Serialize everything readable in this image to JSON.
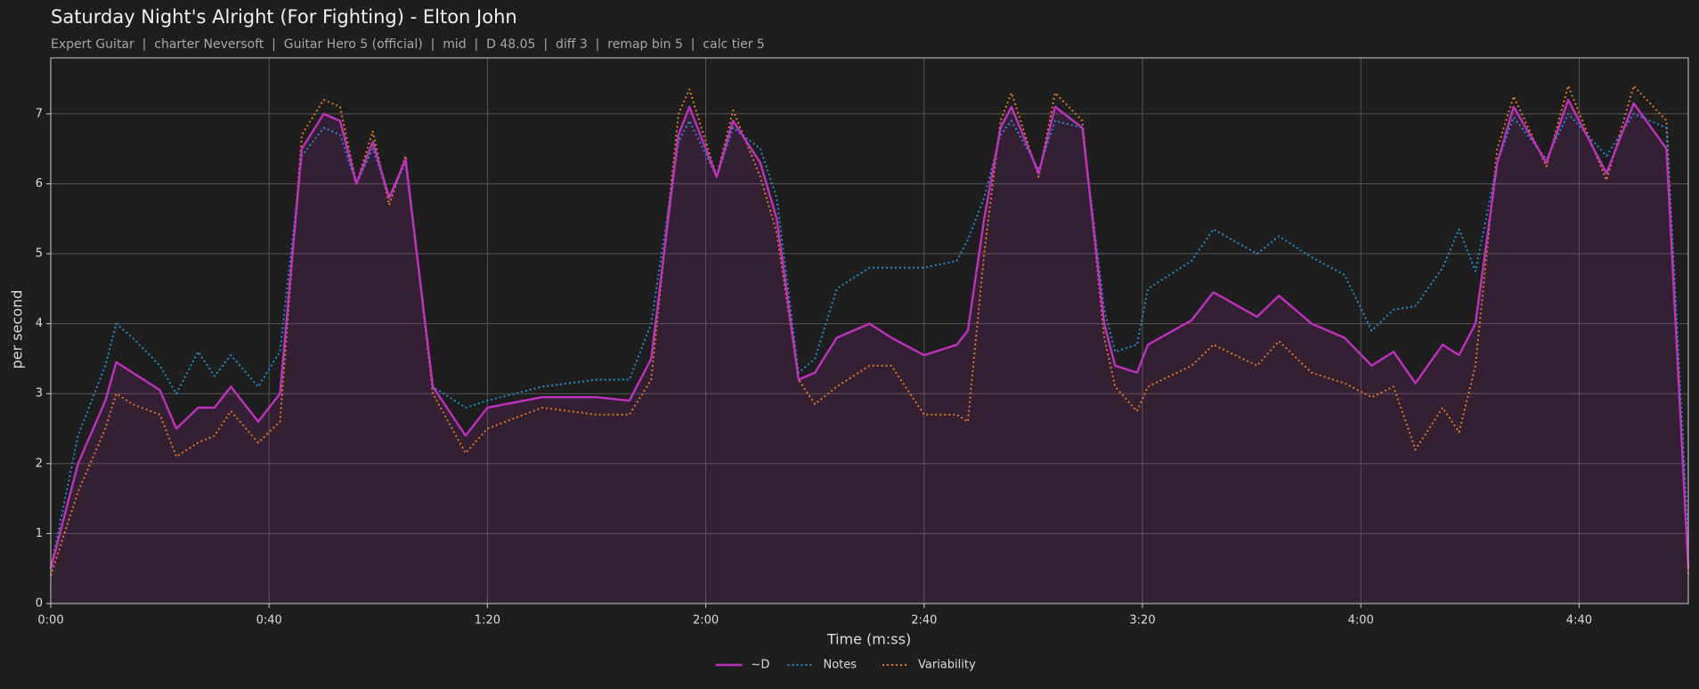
{
  "chart_data": {
    "type": "line",
    "title": "Saturday Night's Alright (For Fighting) - Elton John",
    "subtitle": "Expert Guitar  |  charter Neversoft  |  Guitar Hero 5 (official)  |  mid  |  D 48.05  |  diff 3  |  remap bin 5  |  calc tier 5",
    "x_label": "Time (m:ss)",
    "y_label": "per second",
    "x": [
      0,
      5,
      10,
      12,
      15,
      20,
      23,
      27,
      30,
      33,
      38,
      42,
      46,
      50,
      53,
      56,
      59,
      62,
      65,
      70,
      76,
      80,
      90,
      100,
      106,
      110,
      115,
      117,
      122,
      125,
      130,
      133,
      137,
      140,
      144,
      150,
      154,
      160,
      166,
      168,
      171,
      174,
      176,
      181,
      184,
      189,
      193,
      195,
      199,
      201,
      209,
      213,
      221,
      225,
      231,
      237,
      242,
      246,
      250,
      255,
      258,
      261,
      265,
      268,
      274,
      278,
      285,
      290,
      296,
      300
    ],
    "series": [
      {
        "name": "~D",
        "color": "#c22fc2",
        "style": "solid",
        "fill": true,
        "values": [
          0.5,
          2.0,
          2.9,
          3.45,
          3.3,
          3.05,
          2.5,
          2.8,
          2.8,
          3.1,
          2.6,
          3.0,
          6.5,
          7.0,
          6.9,
          6.0,
          6.6,
          5.8,
          6.35,
          3.1,
          2.4,
          2.8,
          2.95,
          2.95,
          2.9,
          3.5,
          6.7,
          7.1,
          6.1,
          6.9,
          6.3,
          5.5,
          3.2,
          3.3,
          3.8,
          4.0,
          3.8,
          3.55,
          3.7,
          3.9,
          5.5,
          6.8,
          7.1,
          6.15,
          7.1,
          6.8,
          4.0,
          3.4,
          3.3,
          3.7,
          4.05,
          4.45,
          4.1,
          4.4,
          4.0,
          3.8,
          3.4,
          3.6,
          3.15,
          3.7,
          3.55,
          4.0,
          6.3,
          7.1,
          6.3,
          7.2,
          6.15,
          7.15,
          6.5,
          0.5
        ]
      },
      {
        "name": "Notes",
        "color": "#1f8fcf",
        "style": "dotted",
        "values": [
          0.5,
          2.4,
          3.4,
          4.0,
          3.8,
          3.4,
          3.0,
          3.6,
          3.25,
          3.55,
          3.1,
          3.6,
          6.4,
          6.8,
          6.7,
          6.0,
          6.5,
          5.8,
          6.3,
          3.1,
          2.8,
          2.9,
          3.1,
          3.2,
          3.2,
          4.0,
          6.6,
          6.9,
          6.1,
          6.8,
          6.5,
          5.8,
          3.3,
          3.5,
          4.5,
          4.8,
          4.8,
          4.8,
          4.9,
          5.2,
          5.8,
          6.7,
          6.9,
          6.2,
          6.9,
          6.8,
          4.2,
          3.6,
          3.7,
          4.5,
          4.9,
          5.35,
          5.0,
          5.25,
          4.95,
          4.7,
          3.9,
          4.2,
          4.25,
          4.8,
          5.35,
          4.75,
          6.3,
          6.95,
          6.35,
          7.0,
          6.4,
          7.0,
          6.8,
          0.9
        ]
      },
      {
        "name": "Variability",
        "color": "#e07a20",
        "style": "dotted",
        "values": [
          0.4,
          1.6,
          2.5,
          3.0,
          2.85,
          2.7,
          2.1,
          2.3,
          2.4,
          2.75,
          2.3,
          2.6,
          6.7,
          7.2,
          7.1,
          6.0,
          6.75,
          5.7,
          6.4,
          3.0,
          2.15,
          2.5,
          2.8,
          2.7,
          2.7,
          3.2,
          7.0,
          7.35,
          6.1,
          7.05,
          6.1,
          5.3,
          3.2,
          2.85,
          3.1,
          3.4,
          3.4,
          2.7,
          2.7,
          2.6,
          5.0,
          6.9,
          7.3,
          6.1,
          7.3,
          6.9,
          3.8,
          3.1,
          2.75,
          3.1,
          3.4,
          3.7,
          3.4,
          3.75,
          3.3,
          3.15,
          2.95,
          3.1,
          2.2,
          2.8,
          2.45,
          3.4,
          6.5,
          7.25,
          6.25,
          7.4,
          6.05,
          7.4,
          6.9,
          0.4
        ]
      }
    ],
    "xlim": [
      0,
      300
    ],
    "ylim": [
      0,
      7.8
    ],
    "xticks": [
      {
        "value": 0,
        "label": "0:00"
      },
      {
        "value": 40,
        "label": "0:40"
      },
      {
        "value": 80,
        "label": "1:20"
      },
      {
        "value": 120,
        "label": "2:00"
      },
      {
        "value": 160,
        "label": "2:40"
      },
      {
        "value": 200,
        "label": "3:20"
      },
      {
        "value": 240,
        "label": "4:00"
      },
      {
        "value": 280,
        "label": "4:40"
      }
    ],
    "yticks": [
      0,
      1,
      2,
      3,
      4,
      5,
      6,
      7
    ],
    "grid": true,
    "legend": "bottom"
  }
}
